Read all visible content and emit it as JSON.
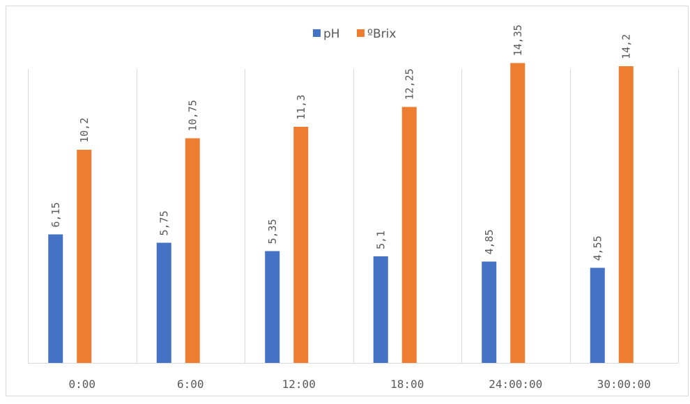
{
  "chart_data": {
    "type": "bar",
    "categories": [
      "0:00",
      "6:00",
      "12:00",
      "18:00",
      "24:00:00",
      "30:00:00"
    ],
    "series": [
      {
        "name": "pH",
        "color": "#4472c4",
        "values": [
          6.15,
          5.75,
          5.35,
          5.1,
          4.85,
          4.55
        ],
        "labels": [
          "6,15",
          "5,75",
          "5,35",
          "5,1",
          "4,85",
          "4,55"
        ]
      },
      {
        "name": "ºBrix",
        "color": "#ed7d31",
        "values": [
          10.2,
          10.75,
          11.3,
          12.25,
          14.35,
          14.2
        ],
        "labels": [
          "10,2",
          "10,75",
          "11,3",
          "12,25",
          "14,35",
          "14,2"
        ]
      }
    ],
    "ylim": [
      0,
      16
    ],
    "grid": "vertical category separators",
    "legend": "top-center",
    "title": "",
    "xlabel": "",
    "ylabel": ""
  }
}
